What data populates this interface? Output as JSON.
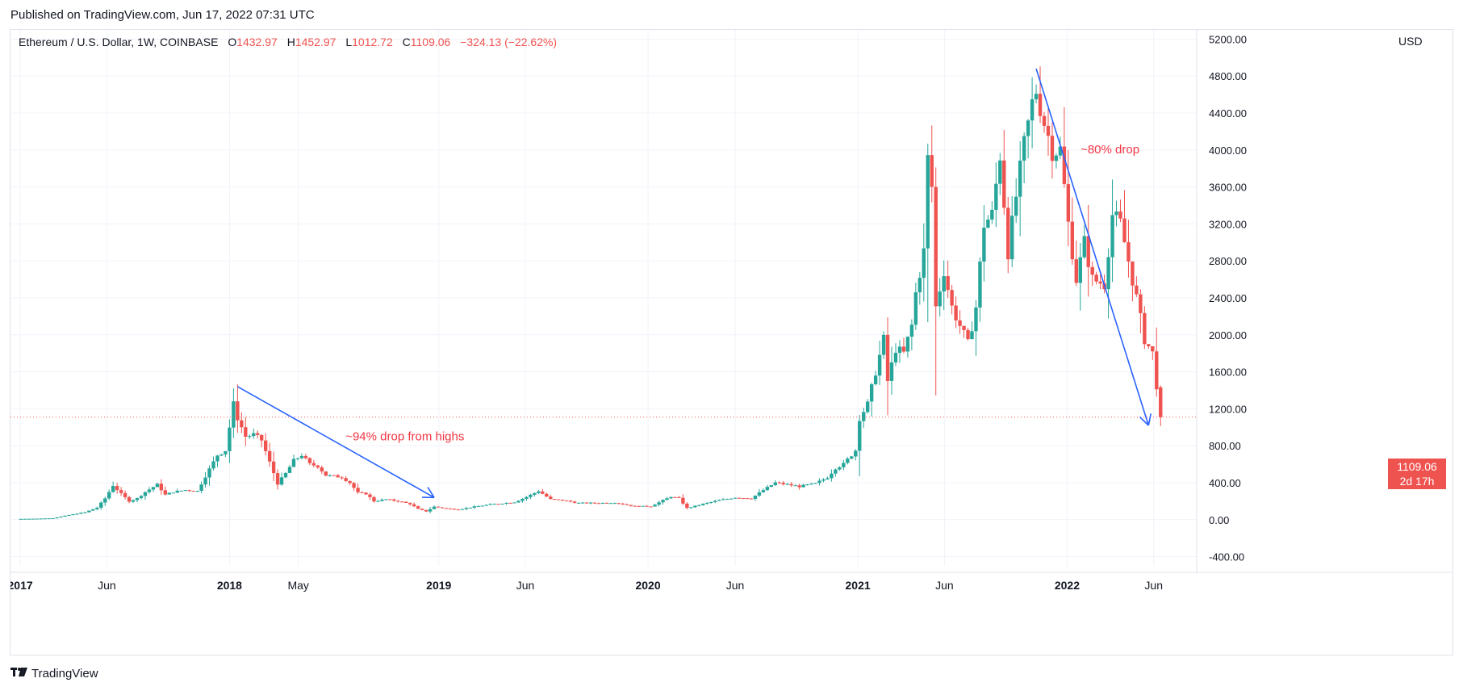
{
  "header": {
    "published": "Published on TradingView.com, Jun 17, 2022 07:31 UTC"
  },
  "legend": {
    "symbol": "Ethereum / U.S. Dollar, 1W, COINBASE",
    "open_label": "O",
    "open": "1432.97",
    "high_label": "H",
    "high": "1452.97",
    "low_label": "L",
    "low": "1012.72",
    "close_label": "C",
    "close": "1109.06",
    "change": "−324.13 (−22.62%)"
  },
  "price_axis": {
    "currency": "USD"
  },
  "last_price": {
    "value": "1109.06",
    "countdown": "2d 17h"
  },
  "footer": {
    "brand": "TradingView",
    "logo": "tradingview-logo-icon"
  },
  "colors": {
    "up": "#26a69a",
    "down": "#ef5350",
    "annotation_line": "#2962ff",
    "annotation_text": "#f23645",
    "grid": "#f0f3fa"
  },
  "chart_data": {
    "type": "candlestick",
    "title": "Ethereum / U.S. Dollar, 1W, COINBASE",
    "xlabel": "",
    "ylabel": "USD",
    "ylim": [
      -500,
      5300
    ],
    "y_ticks": [
      -400,
      0,
      400,
      800,
      1200,
      1600,
      2000,
      2400,
      2800,
      3200,
      3600,
      4000,
      4400,
      4800,
      5200
    ],
    "x_ticks": [
      {
        "date": "2017-01-01",
        "label": "2017",
        "bold": true
      },
      {
        "date": "2017-06-01",
        "label": "Jun",
        "bold": false
      },
      {
        "date": "2018-01-01",
        "label": "2018",
        "bold": true
      },
      {
        "date": "2018-05-01",
        "label": "May",
        "bold": false
      },
      {
        "date": "2019-01-01",
        "label": "2019",
        "bold": true
      },
      {
        "date": "2019-06-01",
        "label": "Jun",
        "bold": false
      },
      {
        "date": "2020-01-01",
        "label": "2020",
        "bold": true
      },
      {
        "date": "2020-06-01",
        "label": "Jun",
        "bold": false
      },
      {
        "date": "2021-01-01",
        "label": "2021",
        "bold": true
      },
      {
        "date": "2021-06-01",
        "label": "Jun",
        "bold": false
      },
      {
        "date": "2022-01-01",
        "label": "2022",
        "bold": true
      },
      {
        "date": "2022-06-01",
        "label": "Jun",
        "bold": false
      }
    ],
    "xlim": [
      "2016-12-15",
      "2022-08-15"
    ],
    "grid": true,
    "close_series": [
      [
        "2016-12-26",
        8
      ],
      [
        "2017-01-30",
        11
      ],
      [
        "2017-02-27",
        16
      ],
      [
        "2017-03-27",
        50
      ],
      [
        "2017-04-24",
        80
      ],
      [
        "2017-05-15",
        130
      ],
      [
        "2017-05-29",
        230
      ],
      [
        "2017-06-12",
        370
      ],
      [
        "2017-06-26",
        280
      ],
      [
        "2017-07-10",
        200
      ],
      [
        "2017-07-24",
        230
      ],
      [
        "2017-08-07",
        300
      ],
      [
        "2017-08-28",
        380
      ],
      [
        "2017-09-11",
        270
      ],
      [
        "2017-09-25",
        300
      ],
      [
        "2017-10-16",
        320
      ],
      [
        "2017-11-06",
        310
      ],
      [
        "2017-11-20",
        470
      ],
      [
        "2017-12-11",
        700
      ],
      [
        "2017-12-25",
        750
      ],
      [
        "2018-01-08",
        1250
      ],
      [
        "2018-01-15",
        1100
      ],
      [
        "2018-01-29",
        900
      ],
      [
        "2018-02-12",
        920
      ],
      [
        "2018-02-26",
        860
      ],
      [
        "2018-03-12",
        620
      ],
      [
        "2018-03-26",
        390
      ],
      [
        "2018-04-09",
        500
      ],
      [
        "2018-04-23",
        640
      ],
      [
        "2018-05-07",
        700
      ],
      [
        "2018-05-21",
        600
      ],
      [
        "2018-06-04",
        580
      ],
      [
        "2018-06-18",
        480
      ],
      [
        "2018-07-02",
        470
      ],
      [
        "2018-07-16",
        460
      ],
      [
        "2018-07-30",
        400
      ],
      [
        "2018-08-13",
        290
      ],
      [
        "2018-08-27",
        280
      ],
      [
        "2018-09-10",
        200
      ],
      [
        "2018-10-01",
        220
      ],
      [
        "2018-10-22",
        200
      ],
      [
        "2018-11-12",
        170
      ],
      [
        "2018-11-26",
        115
      ],
      [
        "2018-12-10",
        90
      ],
      [
        "2018-12-24",
        140
      ],
      [
        "2019-01-14",
        120
      ],
      [
        "2019-02-04",
        110
      ],
      [
        "2019-03-04",
        140
      ],
      [
        "2019-04-01",
        165
      ],
      [
        "2019-05-13",
        190
      ],
      [
        "2019-06-03",
        245
      ],
      [
        "2019-06-24",
        310
      ],
      [
        "2019-07-15",
        220
      ],
      [
        "2019-08-05",
        210
      ],
      [
        "2019-09-02",
        180
      ],
      [
        "2019-10-07",
        180
      ],
      [
        "2019-11-04",
        185
      ],
      [
        "2019-12-09",
        145
      ],
      [
        "2020-01-06",
        145
      ],
      [
        "2020-02-10",
        250
      ],
      [
        "2020-02-24",
        230
      ],
      [
        "2020-03-09",
        125
      ],
      [
        "2020-04-06",
        170
      ],
      [
        "2020-05-04",
        210
      ],
      [
        "2020-06-01",
        240
      ],
      [
        "2020-06-29",
        230
      ],
      [
        "2020-07-20",
        320
      ],
      [
        "2020-08-10",
        400
      ],
      [
        "2020-08-31",
        380
      ],
      [
        "2020-09-21",
        360
      ],
      [
        "2020-10-19",
        390
      ],
      [
        "2020-11-09",
        460
      ],
      [
        "2020-11-23",
        560
      ],
      [
        "2020-12-07",
        600
      ],
      [
        "2020-12-28",
        750
      ],
      [
        "2021-01-04",
        1100
      ],
      [
        "2021-01-18",
        1250
      ],
      [
        "2021-02-01",
        1600
      ],
      [
        "2021-02-15",
        1950
      ],
      [
        "2021-02-22",
        1500
      ],
      [
        "2021-03-08",
        1850
      ],
      [
        "2021-03-22",
        1800
      ],
      [
        "2021-04-05",
        2100
      ],
      [
        "2021-04-12",
        2450
      ],
      [
        "2021-04-26",
        2900
      ],
      [
        "2021-05-03",
        3900
      ],
      [
        "2021-05-10",
        3600
      ],
      [
        "2021-05-17",
        2300
      ],
      [
        "2021-05-31",
        2700
      ],
      [
        "2021-06-14",
        2300
      ],
      [
        "2021-06-28",
        2100
      ],
      [
        "2021-07-12",
        1900
      ],
      [
        "2021-07-26",
        2300
      ],
      [
        "2021-08-09",
        3200
      ],
      [
        "2021-08-23",
        3300
      ],
      [
        "2021-09-06",
        3950
      ],
      [
        "2021-09-20",
        2900
      ],
      [
        "2021-10-04",
        3500
      ],
      [
        "2021-10-18",
        4050
      ],
      [
        "2021-11-01",
        4500
      ],
      [
        "2021-11-08",
        4650
      ],
      [
        "2021-11-22",
        4300
      ],
      [
        "2021-12-06",
        4000
      ],
      [
        "2021-12-20",
        4000
      ],
      [
        "2022-01-03",
        3200
      ],
      [
        "2022-01-17",
        2600
      ],
      [
        "2022-01-31",
        3000
      ],
      [
        "2022-02-14",
        2600
      ],
      [
        "2022-03-07",
        2550
      ],
      [
        "2022-03-21",
        3300
      ],
      [
        "2022-04-04",
        3200
      ],
      [
        "2022-04-18",
        2800
      ],
      [
        "2022-05-02",
        2400
      ],
      [
        "2022-05-16",
        1950
      ],
      [
        "2022-05-30",
        1800
      ],
      [
        "2022-06-06",
        1450
      ],
      [
        "2022-06-13",
        1109.06
      ]
    ],
    "last_candle": {
      "open": 1432.97,
      "high": 1452.97,
      "low": 1012.72,
      "close": 1109.06
    },
    "price_line": 1109.06,
    "annotations": [
      {
        "text": "~94% drop from highs",
        "from": [
          "2018-01-15",
          1440
        ],
        "to": [
          "2018-12-24",
          240
        ]
      },
      {
        "text": "~80% drop",
        "from": [
          "2021-11-08",
          4880
        ],
        "to": [
          "2022-05-23",
          1020
        ]
      }
    ]
  }
}
